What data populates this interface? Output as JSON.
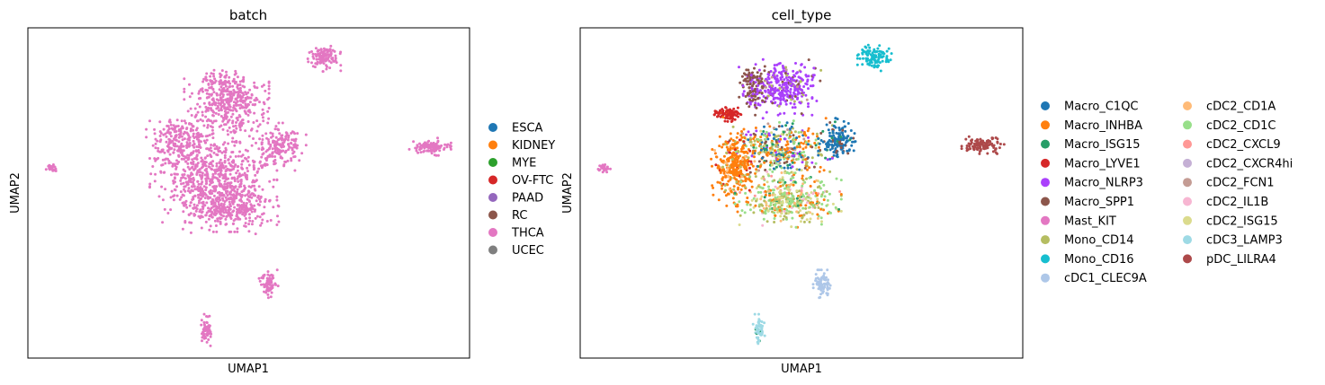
{
  "chart_data": [
    {
      "type": "scatter",
      "title": "batch",
      "xlabel": "UMAP1",
      "ylabel": "UMAP2",
      "xticks": [],
      "yticks": [],
      "grid": false,
      "legend_placement": "right",
      "legend": [
        {
          "label": "ESCA",
          "color": "#1f77b4"
        },
        {
          "label": "KIDNEY",
          "color": "#ff7f0e"
        },
        {
          "label": "MYE",
          "color": "#2ca02c"
        },
        {
          "label": "OV-FTC",
          "color": "#d62728"
        },
        {
          "label": "PAAD",
          "color": "#9467bd"
        },
        {
          "label": "RC",
          "color": "#8c564b"
        },
        {
          "label": "THCA",
          "color": "#e377c2"
        },
        {
          "label": "UCEC",
          "color": "#7f7f7f"
        }
      ],
      "clusters": [
        {
          "name": "main-top",
          "cx": 0.45,
          "cy": 0.78,
          "rx": 0.08,
          "ry": 0.09,
          "n": 420,
          "mix": {
            "THCA": 1
          }
        },
        {
          "name": "main-body",
          "cx": 0.42,
          "cy": 0.55,
          "rx": 0.12,
          "ry": 0.14,
          "n": 720,
          "mix": {
            "THCA": 1
          }
        },
        {
          "name": "main-left-arm",
          "cx": 0.34,
          "cy": 0.66,
          "rx": 0.06,
          "ry": 0.06,
          "n": 180,
          "mix": {
            "THCA": 1
          }
        },
        {
          "name": "main-right-arm",
          "cx": 0.57,
          "cy": 0.64,
          "rx": 0.05,
          "ry": 0.06,
          "n": 170,
          "mix": {
            "THCA": 1
          }
        },
        {
          "name": "main-lower",
          "cx": 0.46,
          "cy": 0.46,
          "rx": 0.09,
          "ry": 0.07,
          "n": 260,
          "mix": {
            "THCA": 1
          }
        },
        {
          "name": "top-right-island",
          "cx": 0.67,
          "cy": 0.91,
          "rx": 0.032,
          "ry": 0.035,
          "n": 110,
          "mix": {
            "THCA": 1
          }
        },
        {
          "name": "right-island",
          "cx": 0.91,
          "cy": 0.64,
          "rx": 0.04,
          "ry": 0.022,
          "n": 110,
          "mix": {
            "THCA": 1
          }
        },
        {
          "name": "left-streak",
          "cx": 0.055,
          "cy": 0.575,
          "rx": 0.012,
          "ry": 0.012,
          "n": 25,
          "mix": {
            "THCA": 1
          }
        },
        {
          "name": "bottom-island",
          "cx": 0.545,
          "cy": 0.225,
          "rx": 0.018,
          "ry": 0.035,
          "n": 70,
          "mix": {
            "THCA": 1
          }
        },
        {
          "name": "bottom-bottom-island",
          "cx": 0.405,
          "cy": 0.085,
          "rx": 0.012,
          "ry": 0.04,
          "n": 60,
          "mix": {
            "THCA": 1
          }
        }
      ]
    },
    {
      "type": "scatter",
      "title": "cell_type",
      "xlabel": "UMAP1",
      "ylabel": "UMAP2",
      "xticks": [],
      "yticks": [],
      "grid": false,
      "legend_placement": "right",
      "legend": [
        {
          "label": "Macro_C1QC",
          "color": "#1f77b4"
        },
        {
          "label": "Macro_INHBA",
          "color": "#ff7f0e"
        },
        {
          "label": "Macro_ISG15",
          "color": "#279e68"
        },
        {
          "label": "Macro_LYVE1",
          "color": "#d62728"
        },
        {
          "label": "Macro_NLRP3",
          "color": "#aa40fc"
        },
        {
          "label": "Macro_SPP1",
          "color": "#8c564b"
        },
        {
          "label": "Mast_KIT",
          "color": "#e377c2"
        },
        {
          "label": "Mono_CD14",
          "color": "#b5bd61"
        },
        {
          "label": "Mono_CD16",
          "color": "#17becf"
        },
        {
          "label": "cDC1_CLEC9A",
          "color": "#aec7e8"
        },
        {
          "label": "cDC2_CD1A",
          "color": "#ffbb78"
        },
        {
          "label": "cDC2_CD1C",
          "color": "#98df8a"
        },
        {
          "label": "cDC2_CXCL9",
          "color": "#ff9896"
        },
        {
          "label": "cDC2_CXCR4hi",
          "color": "#c5b0d5"
        },
        {
          "label": "cDC2_FCN1",
          "color": "#c49c94"
        },
        {
          "label": "cDC2_IL1B",
          "color": "#f7b6d2"
        },
        {
          "label": "cDC2_ISG15",
          "color": "#dbdb8d"
        },
        {
          "label": "cDC3_LAMP3",
          "color": "#9edae5"
        },
        {
          "label": "pDC_LILRA4",
          "color": "#ad494a"
        }
      ],
      "clusters": [
        {
          "name": "nlrp3-top",
          "cx": 0.46,
          "cy": 0.82,
          "rx": 0.07,
          "ry": 0.07,
          "n": 330,
          "mix": {
            "Macro_NLRP3": 0.78,
            "Macro_SPP1": 0.12,
            "Mono_CD14": 0.05,
            "cDC2_FCN1": 0.05
          }
        },
        {
          "name": "spp1-topleft",
          "cx": 0.39,
          "cy": 0.82,
          "rx": 0.03,
          "ry": 0.07,
          "n": 110,
          "mix": {
            "Macro_SPP1": 0.8,
            "Macro_NLRP3": 0.2
          }
        },
        {
          "name": "mixed-center",
          "cx": 0.45,
          "cy": 0.63,
          "rx": 0.1,
          "ry": 0.08,
          "n": 420,
          "mix": {
            "Macro_INHBA": 0.22,
            "Macro_C1QC": 0.16,
            "Mono_CD14": 0.14,
            "Macro_NLRP3": 0.1,
            "Macro_ISG15": 0.08,
            "cDC2_CD1C": 0.1,
            "cDC2_FCN1": 0.06,
            "Macro_SPP1": 0.06,
            "cDC2_ISG15": 0.08
          }
        },
        {
          "name": "inhba-left",
          "cx": 0.35,
          "cy": 0.58,
          "rx": 0.045,
          "ry": 0.1,
          "n": 330,
          "mix": {
            "Macro_INHBA": 0.82,
            "Macro_LYVE1": 0.05,
            "Mono_CD14": 0.07,
            "cDC2_CD1A": 0.06
          }
        },
        {
          "name": "lyve1-left",
          "cx": 0.335,
          "cy": 0.74,
          "rx": 0.03,
          "ry": 0.02,
          "n": 90,
          "mix": {
            "Macro_LYVE1": 0.9,
            "Macro_INHBA": 0.1
          }
        },
        {
          "name": "c1qc-right",
          "cx": 0.58,
          "cy": 0.66,
          "rx": 0.035,
          "ry": 0.055,
          "n": 170,
          "mix": {
            "Macro_C1QC": 0.82,
            "Macro_SPP1": 0.08,
            "Macro_ISG15": 0.1
          }
        },
        {
          "name": "cd1c-lower",
          "cx": 0.47,
          "cy": 0.48,
          "rx": 0.1,
          "ry": 0.07,
          "n": 420,
          "mix": {
            "cDC2_CD1C": 0.32,
            "Mono_CD14": 0.18,
            "cDC2_ISG15": 0.18,
            "cDC2_CD1A": 0.08,
            "Macro_INHBA": 0.1,
            "cDC2_CXCL9": 0.05,
            "Macro_ISG15": 0.05,
            "cDC2_IL1B": 0.04
          }
        },
        {
          "name": "mono-cd16-top",
          "cx": 0.665,
          "cy": 0.91,
          "rx": 0.032,
          "ry": 0.035,
          "n": 110,
          "mix": {
            "Mono_CD16": 1
          }
        },
        {
          "name": "pdc-right",
          "cx": 0.91,
          "cy": 0.645,
          "rx": 0.04,
          "ry": 0.022,
          "n": 110,
          "mix": {
            "pDC_LILRA4": 1
          }
        },
        {
          "name": "left-streak",
          "cx": 0.055,
          "cy": 0.575,
          "rx": 0.012,
          "ry": 0.012,
          "n": 25,
          "mix": {
            "Mast_KIT": 1
          }
        },
        {
          "name": "cdc1-bottom",
          "cx": 0.545,
          "cy": 0.225,
          "rx": 0.018,
          "ry": 0.035,
          "n": 70,
          "mix": {
            "cDC1_CLEC9A": 1
          }
        },
        {
          "name": "cdc3-bottom",
          "cx": 0.405,
          "cy": 0.085,
          "rx": 0.012,
          "ry": 0.04,
          "n": 60,
          "mix": {
            "cDC3_LAMP3": 0.94,
            "Macro_ISG15": 0.06
          }
        }
      ]
    }
  ]
}
